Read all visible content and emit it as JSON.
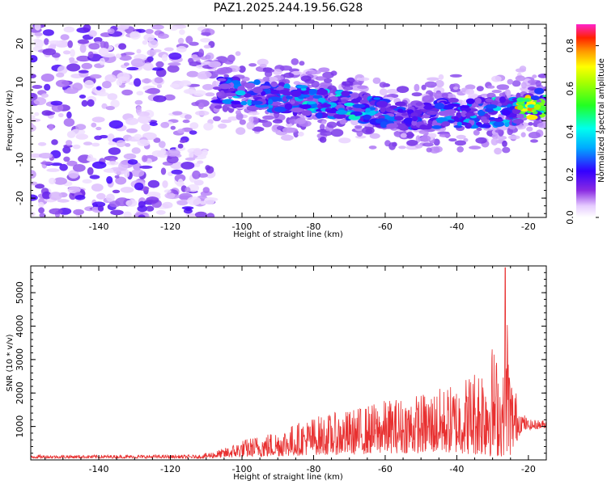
{
  "title": "PAZ1.2025.244.19.56.G28",
  "chart_data": [
    {
      "type": "heatmap",
      "name": "spectrogram",
      "xlabel": "Height of straight line (km)",
      "ylabel": "Frequency (Hz)",
      "xlim": [
        -159,
        -15
      ],
      "ylim": [
        -25,
        25
      ],
      "xticks": [
        -140,
        -120,
        -100,
        -80,
        -60,
        -40,
        -20
      ],
      "yticks": [
        -20,
        -10,
        0,
        10,
        20
      ],
      "colorbar": {
        "label": "Normalized spectral amplitude",
        "range": [
          0.0,
          0.9
        ],
        "ticks": [
          0.0,
          0.2,
          0.4,
          0.6,
          0.8
        ]
      },
      "ridge": {
        "description_points_height_km": [
          -107,
          -100,
          -90,
          -80,
          -70,
          -60,
          -50,
          -40,
          -30,
          -24,
          -20,
          -15
        ],
        "frequency_hz": [
          8,
          7,
          6,
          5,
          4,
          2,
          1.5,
          2,
          2,
          2.5,
          4.5,
          4
        ],
        "peak_amplitude": [
          0.35,
          0.4,
          0.35,
          0.45,
          0.45,
          0.35,
          0.3,
          0.4,
          0.45,
          0.4,
          0.75,
          0.6
        ]
      },
      "noise_region_x": [
        -159,
        -108
      ]
    },
    {
      "type": "line",
      "name": "snr",
      "xlabel": "Height of straight line (km)",
      "ylabel": "SNR (10 * v/v)",
      "xlim": [
        -159,
        -15
      ],
      "ylim": [
        0,
        5800
      ],
      "xticks": [
        -140,
        -120,
        -100,
        -80,
        -60,
        -40,
        -20
      ],
      "yticks": [
        1000,
        2000,
        3000,
        4000,
        5000
      ],
      "color": "#e83030",
      "envelope": {
        "x": [
          -159,
          -130,
          -112,
          -105,
          -100,
          -90,
          -80,
          -70,
          -60,
          -50,
          -40,
          -35,
          -30,
          -27,
          -26.5,
          -25,
          -22,
          -20,
          -15
        ],
        "upper": [
          150,
          150,
          150,
          350,
          600,
          900,
          1300,
          1500,
          1800,
          2000,
          2300,
          2800,
          3500,
          2600,
          5750,
          2700,
          1500,
          1200,
          1200
        ],
        "lower": [
          50,
          50,
          50,
          60,
          80,
          100,
          150,
          150,
          200,
          200,
          200,
          150,
          100,
          100,
          300,
          100,
          850,
          900,
          950
        ]
      }
    }
  ]
}
